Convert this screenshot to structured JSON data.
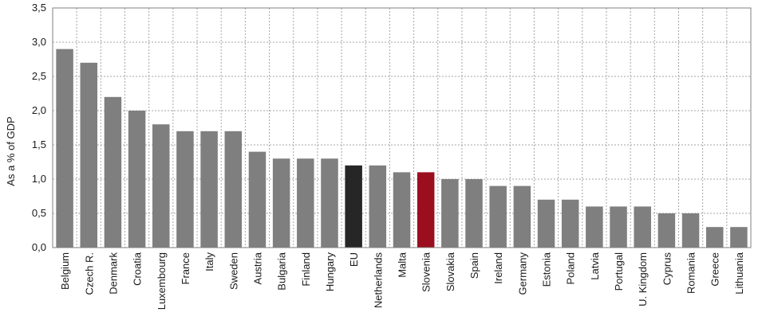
{
  "chart_data": {
    "type": "bar",
    "title": "",
    "xlabel": "",
    "ylabel": "As a % of GDP",
    "ylim": [
      0,
      3.5
    ],
    "yticks": [
      "0,0",
      "0,5",
      "1,0",
      "1,5",
      "2,0",
      "2,5",
      "3,0",
      "3,5"
    ],
    "grid": true,
    "categories": [
      "Belgium",
      "Czech R.",
      "Denmark",
      "Croatia",
      "Luxembourg",
      "France",
      "Italy",
      "Sweden",
      "Austria",
      "Bulgaria",
      "Finland",
      "Hungary",
      "EU",
      "Netherlands",
      "Malta",
      "Slovenia",
      "Slovakia",
      "Spain",
      "Ireland",
      "Germany",
      "Estonia",
      "Poland",
      "Latvia",
      "Portugal",
      "U. Kingdom",
      "Cyprus",
      "Romania",
      "Greece",
      "Lithuania"
    ],
    "values": [
      2.9,
      2.7,
      2.2,
      2.0,
      1.8,
      1.7,
      1.7,
      1.7,
      1.4,
      1.3,
      1.3,
      1.3,
      1.2,
      1.2,
      1.1,
      1.1,
      1.0,
      1.0,
      0.9,
      0.9,
      0.7,
      0.7,
      0.6,
      0.6,
      0.6,
      0.5,
      0.5,
      0.3,
      0.3
    ],
    "colors": {
      "default": "#7f7f7f",
      "highlight": {
        "EU": "#262626",
        "Slovenia": "#9b0e1e"
      },
      "grid": "#a6a6a6",
      "axis": "#808080"
    }
  }
}
